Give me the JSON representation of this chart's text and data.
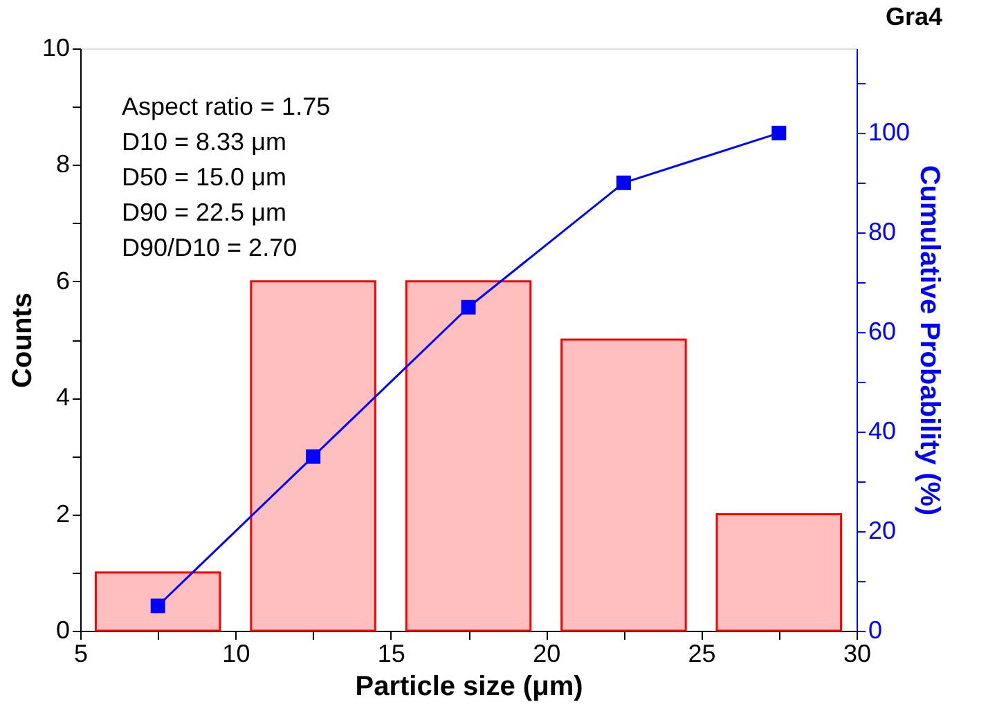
{
  "chart_data": {
    "type": "histogram",
    "title": "Gra4",
    "xlabel": "Particle size (μm)",
    "ylabel": "Counts",
    "y2label": "Cumulative Probability (%)",
    "series": [
      {
        "bins": [
          5,
          10,
          15,
          20,
          25,
          30
        ],
        "values": [
          1,
          6,
          6,
          5,
          2
        ],
        "color": "#ff0000"
      },
      {
        "type": "line",
        "axis": "y2",
        "x": [
          7.5,
          12.5,
          17.5,
          22.5,
          27.5
        ],
        "values": [
          5,
          35,
          65,
          90,
          100
        ],
        "color": "#0000ff",
        "marker": "square",
        "line_style": "solid"
      }
    ],
    "xlim": [
      5,
      30
    ],
    "xticks": [
      5,
      {
        "value": 7.5,
        "label": null
      },
      10,
      {
        "value": 12.5,
        "label": null
      },
      15,
      {
        "value": 17.5,
        "label": null
      },
      20,
      {
        "value": 22.5,
        "label": null
      },
      25,
      {
        "value": 27.5,
        "label": null
      },
      30
    ],
    "ylim": [
      0,
      10
    ],
    "yticks": [
      0,
      {
        "value": 1,
        "label": null
      },
      2,
      {
        "value": 3,
        "label": null
      },
      4,
      {
        "value": 5,
        "label": null
      },
      6,
      {
        "value": 7,
        "label": null
      },
      8,
      {
        "value": 9,
        "label": null
      },
      10
    ],
    "y2lim": [
      0,
      117
    ],
    "y2ticks": [
      0,
      {
        "value": 10,
        "label": null
      },
      20,
      {
        "value": 30,
        "label": null
      },
      40,
      {
        "value": 50,
        "label": null
      },
      60,
      {
        "value": 70,
        "label": null
      },
      80,
      {
        "value": 90,
        "label": null
      },
      100,
      {
        "value": 110,
        "label": null
      }
    ],
    "annotations": [
      "Aspect ratio = 1.75",
      "D10 = 8.33 μm",
      "D50 = 15.0 μm",
      "D90 = 22.5 μm",
      "D90/D10 = 2.70"
    ]
  }
}
